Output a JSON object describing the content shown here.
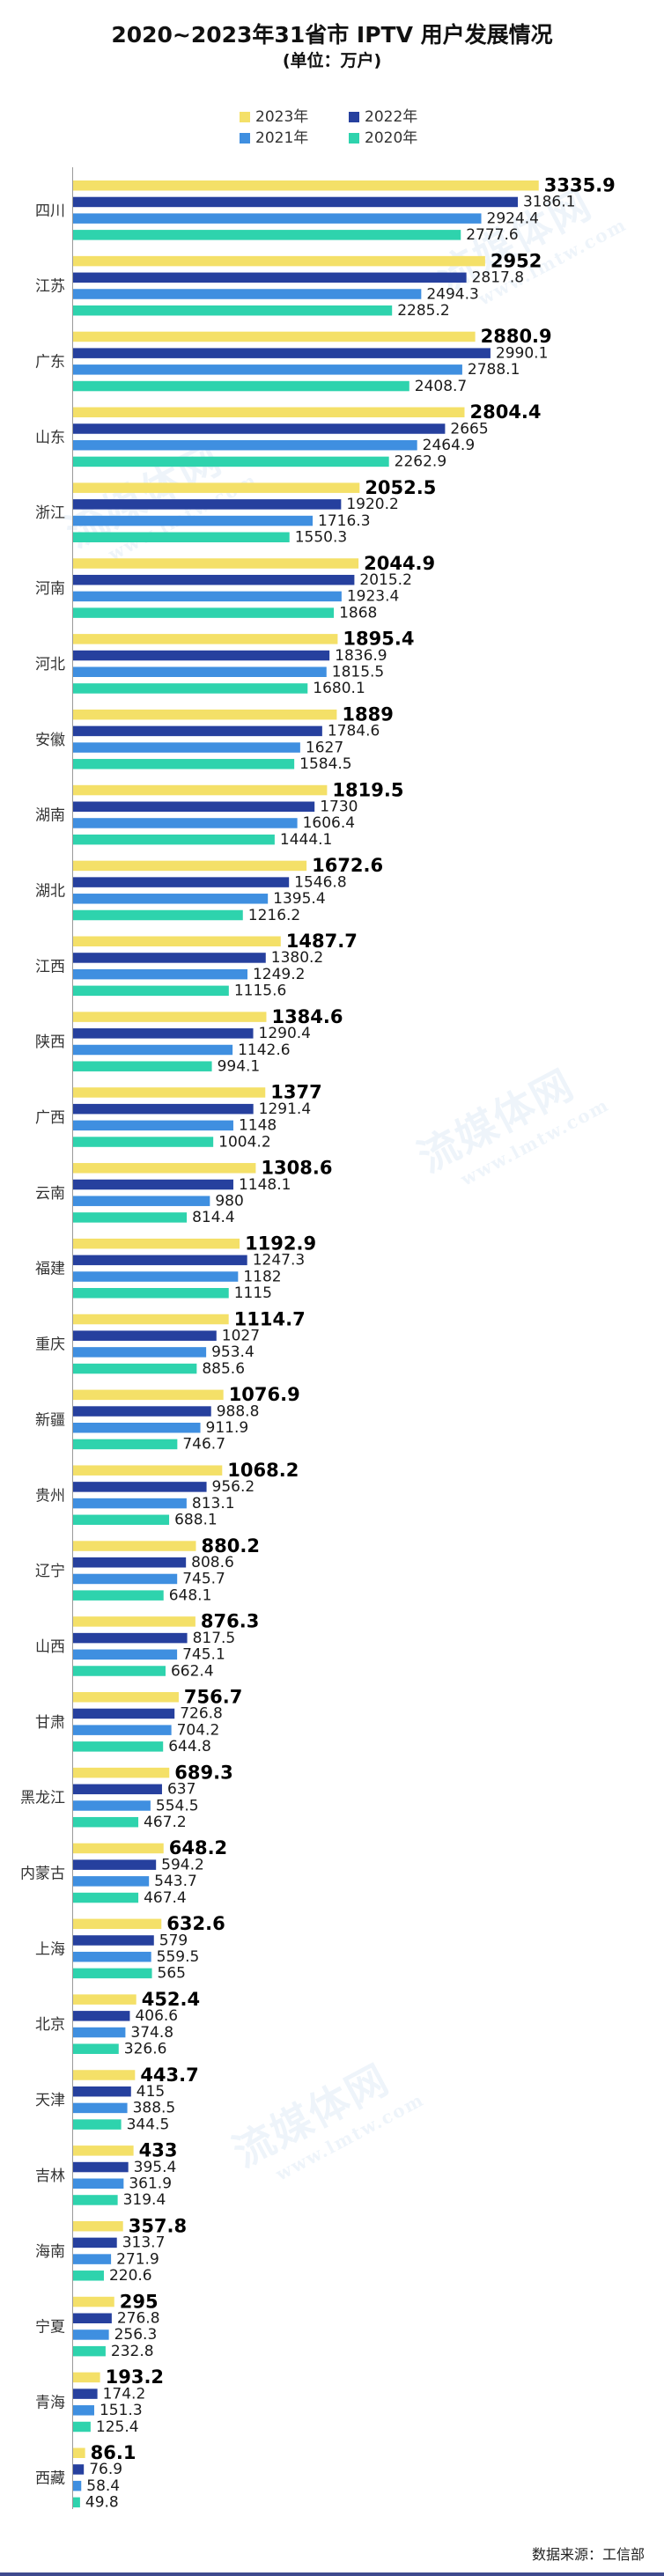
{
  "title": "2020~2023年31省市 IPTV 用户发展情况",
  "subtitle": "(单位：万户)",
  "legend": [
    {
      "label": "2023年",
      "color": "#f4e068"
    },
    {
      "label": "2022年",
      "color": "#26409e"
    },
    {
      "label": "2021年",
      "color": "#3f8fe0"
    },
    {
      "label": "2020年",
      "color": "#2ed3ad"
    }
  ],
  "watermark": {
    "text": "流媒体网",
    "url": "www.lmtw.com"
  },
  "source": "数据来源：工信部",
  "chart_data": {
    "type": "bar",
    "orientation": "horizontal",
    "title": "2020~2023年31省市 IPTV 用户发展情况",
    "unit": "万户",
    "legend_position": "top",
    "grid": false,
    "xlim": [
      0,
      3400
    ],
    "categories": [
      "四川",
      "江苏",
      "广东",
      "山东",
      "浙江",
      "河南",
      "河北",
      "安徽",
      "湖南",
      "湖北",
      "江西",
      "陕西",
      "广西",
      "云南",
      "福建",
      "重庆",
      "新疆",
      "贵州",
      "辽宁",
      "山西",
      "甘肃",
      "黑龙江",
      "内蒙古",
      "上海",
      "北京",
      "天津",
      "吉林",
      "海南",
      "宁夏",
      "青海",
      "西藏"
    ],
    "series": [
      {
        "name": "2023年",
        "color": "#f4e068",
        "values": [
          3335.9,
          2952,
          2880.9,
          2804.4,
          2052.5,
          2044.9,
          1895.4,
          1889,
          1819.5,
          1672.6,
          1487.7,
          1384.6,
          1377,
          1308.6,
          1192.9,
          1114.7,
          1076.9,
          1068.2,
          880.2,
          876.3,
          756.7,
          689.3,
          648.2,
          632.6,
          452.4,
          443.7,
          433,
          357.8,
          295,
          193.2,
          86.1
        ]
      },
      {
        "name": "2022年",
        "color": "#26409e",
        "values": [
          3186.1,
          2817.8,
          2990.1,
          2665,
          1920.2,
          2015.2,
          1836.9,
          1784.6,
          1730,
          1546.8,
          1380.2,
          1290.4,
          1291.4,
          1148.1,
          1247.3,
          1027,
          988.8,
          956.2,
          808.6,
          817.5,
          726.8,
          637,
          594.2,
          579,
          406.6,
          415,
          395.4,
          313.7,
          276.8,
          174.2,
          76.9
        ]
      },
      {
        "name": "2021年",
        "color": "#3f8fe0",
        "values": [
          2924.4,
          2494.3,
          2788.1,
          2464.9,
          1716.3,
          1923.4,
          1815.5,
          1627,
          1606.4,
          1395.4,
          1249.2,
          1142.6,
          1148,
          980,
          1182,
          953.4,
          911.9,
          813.1,
          745.7,
          745.1,
          704.2,
          554.5,
          543.7,
          559.5,
          374.8,
          388.5,
          361.9,
          271.9,
          256.3,
          151.3,
          58.4
        ]
      },
      {
        "name": "2020年",
        "color": "#2ed3ad",
        "values": [
          2777.6,
          2285.2,
          2408.7,
          2262.9,
          1550.3,
          1868,
          1680.1,
          1584.5,
          1444.1,
          1216.2,
          1115.6,
          994.1,
          1004.2,
          814.4,
          1115,
          885.6,
          746.7,
          688.1,
          648.1,
          662.4,
          644.8,
          467.2,
          467.4,
          565,
          326.6,
          344.5,
          319.4,
          220.6,
          232.8,
          125.4,
          49.8
        ]
      }
    ]
  }
}
